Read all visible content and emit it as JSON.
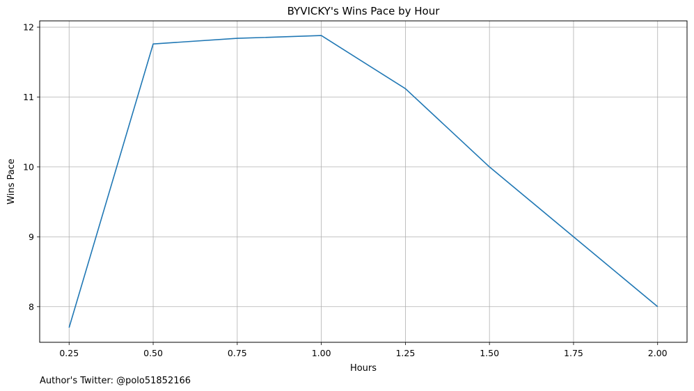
{
  "chart_data": {
    "type": "line",
    "title": "BYVICKY's Wins Pace by Hour",
    "xlabel": "Hours",
    "ylabel": "Wins Pace",
    "x": [
      0.25,
      0.5,
      0.75,
      1.0,
      1.25,
      1.5,
      1.75,
      2.0
    ],
    "x_tick_labels": [
      "0.25",
      "0.50",
      "0.75",
      "1.00",
      "1.25",
      "1.50",
      "1.75",
      "2.00"
    ],
    "y_ticks": [
      8,
      9,
      10,
      11,
      12
    ],
    "y_tick_labels": [
      "8",
      "9",
      "10",
      "11",
      "12"
    ],
    "xlim": [
      0.1625,
      2.0875
    ],
    "ylim": [
      7.49,
      12.09
    ],
    "grid": true,
    "series": [
      {
        "name": "Wins Pace",
        "color": "#1f77b4",
        "values": [
          7.7,
          11.76,
          11.84,
          11.88,
          11.12,
          10.0,
          9.0,
          8.0
        ]
      }
    ]
  },
  "footnote": "Author's Twitter: @polo51852166"
}
